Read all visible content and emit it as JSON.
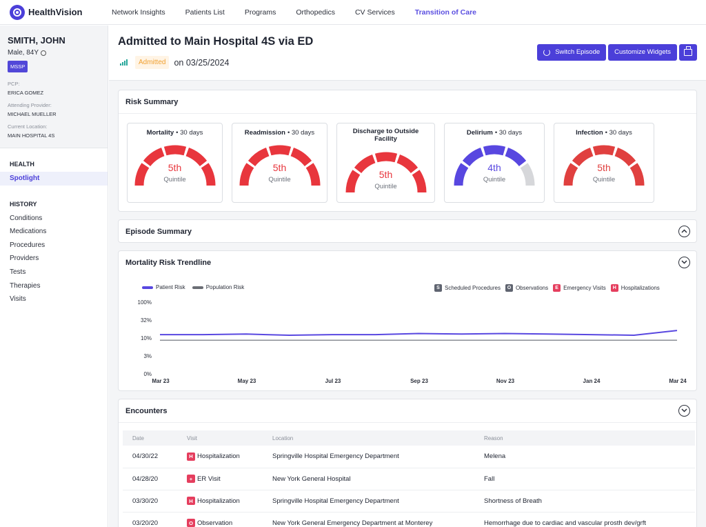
{
  "app": {
    "name": "HealthVision"
  },
  "nav": [
    "Network Insights",
    "Patients List",
    "Programs",
    "Orthopedics",
    "CV Services",
    "Transition of Care"
  ],
  "nav_active": "Transition of Care",
  "patient": {
    "name": "SMITH, JOHN",
    "meta": "Male, 84Y",
    "badge": "MSSP",
    "pcp_label": "PCP:",
    "pcp": "ERICA GOMEZ",
    "attending_label": "Attending Provider:",
    "attending": "MICHAEL MUELLER",
    "location_label": "Current Location:",
    "location": "MAIN HOSPITAL 4S"
  },
  "sidebar": {
    "health_label": "HEALTH",
    "health_items": [
      "Spotlight"
    ],
    "history_label": "HISTORY",
    "history_items": [
      "Conditions",
      "Medications",
      "Procedures",
      "Providers",
      "Tests",
      "Therapies",
      "Visits"
    ]
  },
  "header": {
    "title": "Admitted to Main Hospital 4S via ED",
    "status": "Admitted",
    "date_text": "on 03/25/2024",
    "switch_label": "Switch Episode",
    "customize_label": "Customize Widgets"
  },
  "risk_summary": {
    "title": "Risk Summary",
    "gauges": [
      {
        "name": "Mortality",
        "period": "• 30 days",
        "value": "5th",
        "sub": "Quintile",
        "level": 5,
        "color": "#e8363d"
      },
      {
        "name": "Readmission",
        "period": "• 30 days",
        "value": "5th",
        "sub": "Quintile",
        "level": 5,
        "color": "#e8363d"
      },
      {
        "name": "Discharge to Outside Facility",
        "period": "",
        "value": "5th",
        "sub": "Quintile",
        "level": 5,
        "color": "#e8363d"
      },
      {
        "name": "Delirium",
        "period": "• 30 days",
        "value": "4th",
        "sub": "Quintile",
        "level": 4,
        "color": "#5847e0"
      },
      {
        "name": "Infection",
        "period": "• 30 days",
        "value": "5th",
        "sub": "Quintile",
        "level": 5,
        "color": "#e0403f"
      }
    ]
  },
  "episode_summary": {
    "title": "Episode Summary"
  },
  "trendline": {
    "title": "Mortality Risk Trendline",
    "legend": {
      "patient": "Patient Risk",
      "population": "Population Risk"
    },
    "markers": [
      {
        "letter": "S",
        "label": "Scheduled Procedures",
        "color": "#5f6470"
      },
      {
        "letter": "O",
        "label": "Observations",
        "color": "#5f6470"
      },
      {
        "letter": "E",
        "label": "Emergency Visits",
        "color": "#e53e5e"
      },
      {
        "letter": "H",
        "label": "Hospitalizations",
        "color": "#e53e5e"
      }
    ]
  },
  "chart_data": {
    "type": "line",
    "title": "Mortality Risk Trendline",
    "xlabel": "",
    "ylabel": "",
    "y_ticks": [
      "100%",
      "32%",
      "10%",
      "3%",
      "0%"
    ],
    "y_scale": "log",
    "x_ticks": [
      "Mar 23",
      "May 23",
      "Jul 23",
      "Sep 23",
      "Nov 23",
      "Jan 24",
      "Mar 24"
    ],
    "series": [
      {
        "name": "Patient Risk",
        "color": "#5847e0",
        "x": [
          "Mar 23",
          "Apr 23",
          "May 23",
          "Jun 23",
          "Jul 23",
          "Aug 23",
          "Sep 23",
          "Oct 23",
          "Nov 23",
          "Dec 23",
          "Jan 24",
          "Feb 24",
          "Mar 24"
        ],
        "values": [
          13,
          13,
          13.5,
          12.5,
          13,
          13,
          14,
          13.5,
          14,
          13.5,
          13,
          12.5,
          17
        ]
      },
      {
        "name": "Population Risk",
        "color": "#8a8d94",
        "x": [
          "Mar 23",
          "Mar 24"
        ],
        "values": [
          9,
          9
        ]
      }
    ],
    "grid": false,
    "legend": "top"
  },
  "encounters": {
    "title": "Encounters",
    "columns": [
      "Date",
      "Visit",
      "Location",
      "Reason"
    ],
    "rows": [
      {
        "date": "04/30/22",
        "visit_letter": "H",
        "visit": "Hospitalization",
        "location": "Springville Hospital Emergency Department",
        "reason": "Melena"
      },
      {
        "date": "04/28/20",
        "visit_letter": "+",
        "visit": "ER Visit",
        "location": "New York General Hospital",
        "reason": "Fall"
      },
      {
        "date": "03/30/20",
        "visit_letter": "H",
        "visit": "Hospitalization",
        "location": "Springville Hospital Emergency Department",
        "reason": "Shortness of Breath"
      },
      {
        "date": "03/20/20",
        "visit_letter": "O",
        "visit": "Observation",
        "location": "New York General Emergency Department at Monterey",
        "reason": "Hemorrhage due to cardiac and vascular prosth dev/grft"
      }
    ]
  }
}
